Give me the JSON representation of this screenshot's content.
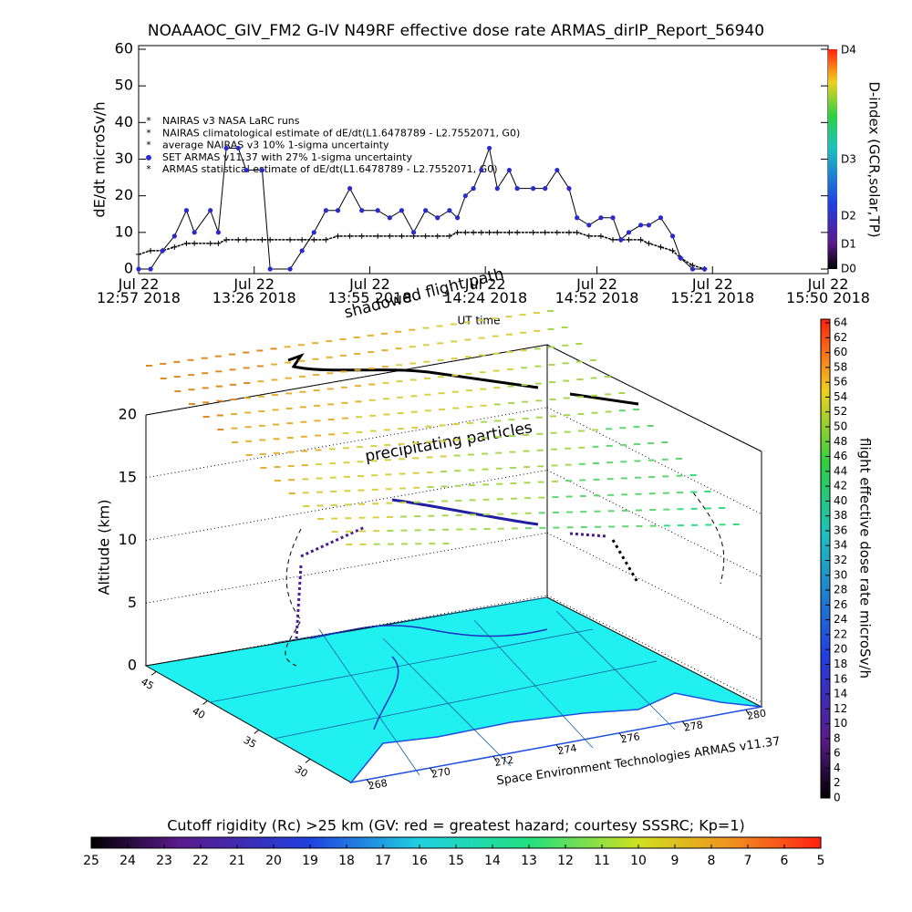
{
  "chart_data": {
    "type": "line",
    "title": "NOAAAOC_GIV_FM2 G-IV    N49RF   effective dose rate ARMAS_dirIP_Report_56940",
    "y_label": "dE/dt microSv/h",
    "x_label": "UT time",
    "xlim": [
      "12:57",
      "15:50"
    ],
    "xticks": [
      {
        "value": "12:57",
        "label": "Jul 22\n12:57 2018"
      },
      {
        "value": "13:26",
        "label": "Jul 22\n13:26 2018"
      },
      {
        "value": "13:55",
        "label": "Jul 22\n13:55 2018"
      },
      {
        "value": "14:24",
        "label": "Jul 22\n14:24 2018"
      },
      {
        "value": "14:52",
        "label": "Jul 22\n14:52 2018"
      },
      {
        "value": "15:21",
        "label": "Jul 22\n15:21 2018"
      },
      {
        "value": "15:50",
        "label": "Jul 22\n15:50 2018"
      }
    ],
    "ylim": [
      0,
      60
    ],
    "yticks": [
      0,
      10,
      20,
      30,
      40,
      50,
      60
    ],
    "legend": [
      "NAIRAS v3 NASA LaRC runs",
      "NAIRAS climatological estimate of dE/dt(L1.6478789 - L2.7552071, G0)",
      "average NAIRAS v3 10% 1-sigma uncertainty",
      "SET ARMAS v11.37 with 27% 1-sigma uncertainty",
      "ARMAS statistical estimate of dE/dt(L1.6478789 - L2.7552071, G0)"
    ],
    "x": [
      "12:57",
      "13:00",
      "13:03",
      "13:06",
      "13:09",
      "13:11",
      "13:15",
      "13:17",
      "13:19",
      "13:22",
      "13:24",
      "13:28",
      "13:30",
      "13:35",
      "13:38",
      "13:41",
      "13:44",
      "13:47",
      "13:50",
      "13:53",
      "13:57",
      "14:00",
      "14:03",
      "14:06",
      "14:09",
      "14:12",
      "14:15",
      "14:17",
      "14:19",
      "14:21",
      "14:23",
      "14:25",
      "14:27",
      "14:30",
      "14:32",
      "14:36",
      "14:39",
      "14:42",
      "14:45",
      "14:47",
      "14:50",
      "14:53",
      "14:56",
      "14:58",
      "15:00",
      "15:03",
      "15:05",
      "15:08",
      "15:11",
      "15:13",
      "15:16",
      "15:19"
    ],
    "series": [
      {
        "name": "NAIRAS climatological estimate",
        "color": "#000000",
        "values": [
          4,
          5,
          5,
          6,
          7,
          7,
          7,
          7,
          8,
          8,
          8,
          8,
          8,
          8,
          8,
          8,
          8,
          9,
          9,
          9,
          9,
          9,
          9,
          9,
          9,
          9,
          9,
          10,
          10,
          10,
          10,
          10,
          10,
          10,
          10,
          10,
          10,
          10,
          10,
          10,
          9,
          9,
          8,
          8,
          8,
          8,
          7,
          6,
          5,
          3,
          1,
          0
        ]
      },
      {
        "name": "SET ARMAS v11.37",
        "color": "#2a2ad0",
        "values": [
          0,
          0,
          5,
          9,
          16,
          10,
          16,
          10,
          33,
          33,
          27,
          27,
          0,
          0,
          5,
          10,
          16,
          16,
          22,
          16,
          16,
          14,
          16,
          10,
          16,
          14,
          16,
          14,
          20,
          22,
          27,
          33,
          22,
          27,
          22,
          22,
          22,
          27,
          22,
          14,
          12,
          14,
          14,
          8,
          10,
          12,
          12,
          14,
          9,
          3,
          0,
          0
        ]
      }
    ],
    "dindex": {
      "title": "D-index (GCR,solar,TP)",
      "ticks": [
        "D0",
        "D1",
        "D2",
        "D3",
        "D4"
      ]
    }
  },
  "scene": {
    "annotations": [
      "shadowed flight path",
      "precipitating particles"
    ],
    "credit": "Space Environment Technologies ARMAS v11.37",
    "alt_label": "Altitude (km)",
    "altlim": [
      0,
      20
    ],
    "alt_ticks": [
      0,
      5,
      10,
      15,
      20
    ],
    "lonlim": [
      267.5,
      280.5
    ],
    "lon_ticks": [
      268,
      270,
      272,
      274,
      276,
      278,
      280
    ],
    "latlim": [
      46,
      26
    ],
    "lat_ticks": [
      45,
      40,
      35,
      30
    ],
    "dose_bar": {
      "title": "flight effective dose rate microSv/h",
      "lim": [
        0,
        64
      ],
      "ticks": [
        0,
        2,
        4,
        6,
        8,
        10,
        12,
        14,
        16,
        18,
        20,
        22,
        24,
        26,
        28,
        30,
        32,
        34,
        36,
        38,
        40,
        42,
        44,
        46,
        48,
        50,
        52,
        54,
        56,
        58,
        60,
        62,
        64
      ]
    },
    "rigidity_bar": {
      "title": "Cutoff rigidity (Rc) >25 km (GV: red = greatest hazard; courtesy SSSRC; Kp=1)",
      "lim": [
        25,
        5
      ],
      "ticks": [
        25,
        24,
        23,
        22,
        21,
        20,
        19,
        18,
        17,
        16,
        15,
        14,
        13,
        12,
        11,
        10,
        9,
        8,
        7,
        6,
        5
      ]
    }
  }
}
